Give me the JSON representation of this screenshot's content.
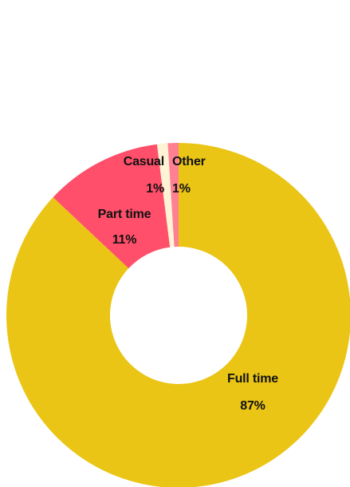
{
  "chart_data": {
    "type": "pie",
    "donut": true,
    "slices": [
      {
        "label": "Full time",
        "value": 87,
        "value_label": "87%",
        "color": "#EAC516"
      },
      {
        "label": "Part time",
        "value": 11,
        "value_label": "11%",
        "color": "#FF4F6A"
      },
      {
        "label": "Casual",
        "value": 1,
        "value_label": "1%",
        "color": "#FFF3D6"
      },
      {
        "label": "Other",
        "value": 1,
        "value_label": "1%",
        "color": "#FF8093"
      }
    ],
    "start": "12 o'clock",
    "direction": "clockwise",
    "legend": "none"
  }
}
